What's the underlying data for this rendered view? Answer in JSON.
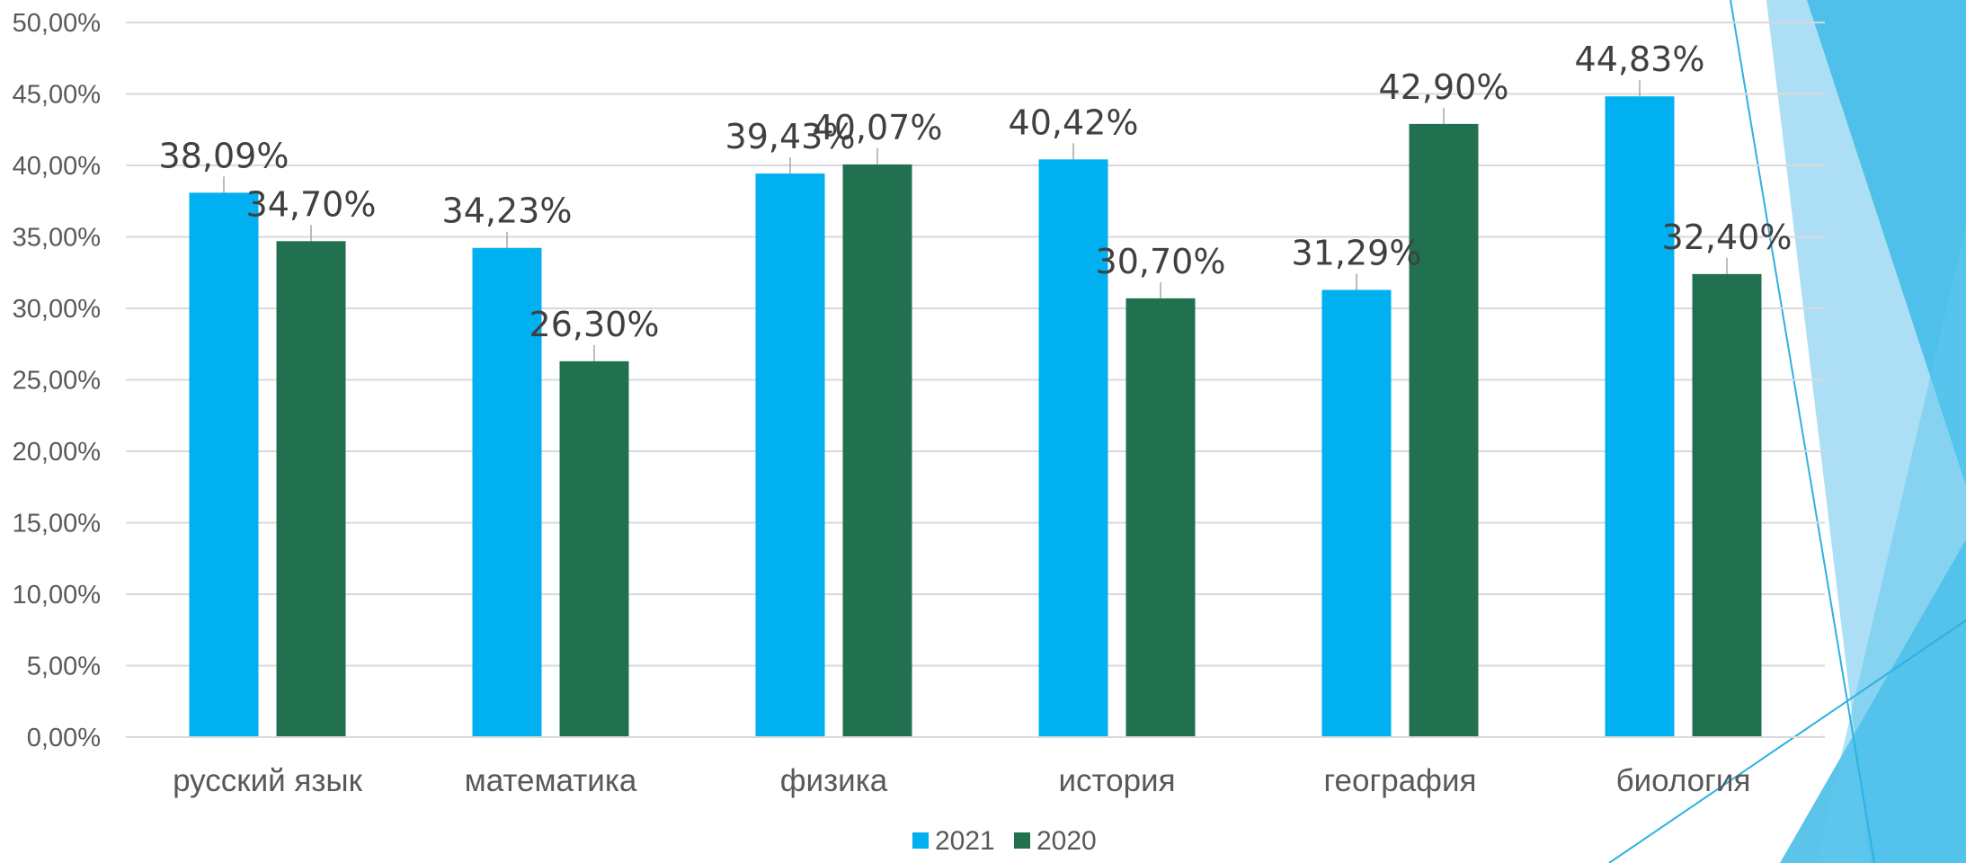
{
  "chart_data": {
    "type": "bar",
    "categories": [
      "русский язык",
      "математика",
      "физика",
      "история",
      "география",
      "биология"
    ],
    "series": [
      {
        "name": "2021",
        "color": "#00B0F0",
        "values": [
          38.09,
          34.23,
          39.43,
          40.42,
          31.29,
          44.83
        ],
        "labels": [
          "38,09%",
          "34,23%",
          "39,43%",
          "40,42%",
          "31,29%",
          "44,83%"
        ]
      },
      {
        "name": "2020",
        "color": "#217150",
        "values": [
          34.7,
          26.3,
          40.07,
          30.7,
          42.9,
          32.4
        ],
        "labels": [
          "34,70%",
          "26,30%",
          "40,07%",
          "30,70%",
          "42,90%",
          "32,40%"
        ]
      }
    ],
    "ylim": [
      0,
      50
    ],
    "yticks": [
      0,
      5,
      10,
      15,
      20,
      25,
      30,
      35,
      40,
      45,
      50
    ],
    "ytick_labels": [
      "0,00%",
      "5,00%",
      "10,00%",
      "15,00%",
      "20,00%",
      "25,00%",
      "30,00%",
      "35,00%",
      "40,00%",
      "45,00%",
      "50,00%"
    ],
    "grid": true,
    "legend_position": "bottom-center"
  }
}
